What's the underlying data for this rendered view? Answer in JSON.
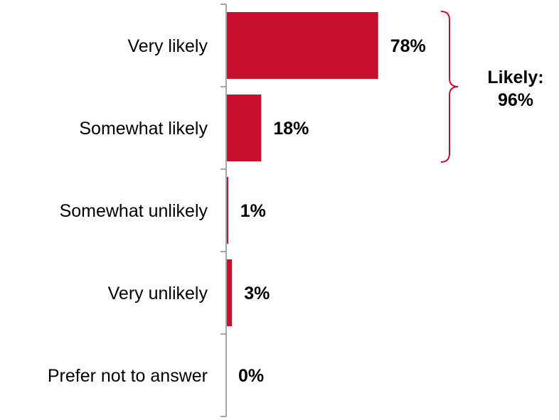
{
  "chart_data": {
    "type": "bar",
    "orientation": "horizontal",
    "categories": [
      "Very likely",
      "Somewhat likely",
      "Somewhat unlikely",
      "Very unlikely",
      "Prefer not to answer"
    ],
    "values": [
      78,
      18,
      1,
      3,
      0
    ],
    "value_labels": [
      "78%",
      "18%",
      "1%",
      "3%",
      "0%"
    ],
    "xlim": [
      0,
      100
    ],
    "grid": false,
    "legend": "none",
    "bar_color": "#C8102E",
    "axis_color": "#A6A6A6",
    "annotation": {
      "line1": "Likely:",
      "line2": "96%",
      "spans": [
        "Very likely",
        "Somewhat likely"
      ],
      "color": "#C8102E"
    }
  }
}
